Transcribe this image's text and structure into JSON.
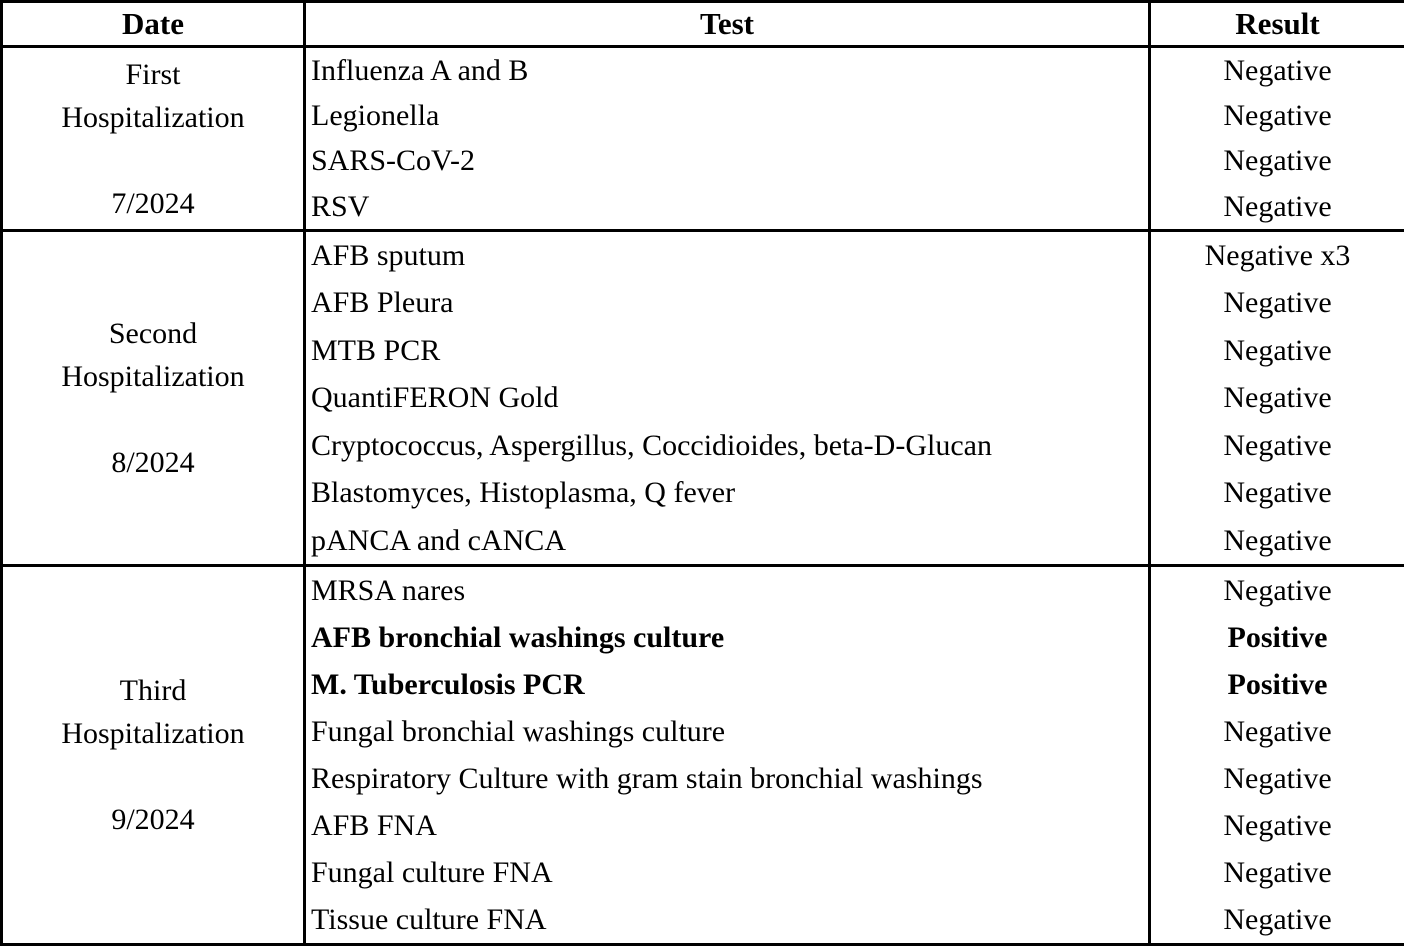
{
  "table": {
    "headers": {
      "date": "Date",
      "test": "Test",
      "result": "Result"
    },
    "sections": [
      {
        "date_lines": [
          "First",
          "Hospitalization",
          "",
          "7/2024"
        ],
        "rows": [
          {
            "test": "Influenza A and B",
            "result": "Negative"
          },
          {
            "test": "Legionella",
            "result": "Negative"
          },
          {
            "test": "SARS-CoV-2",
            "result": "Negative"
          },
          {
            "test": "RSV",
            "result": "Negative"
          }
        ]
      },
      {
        "date_lines": [
          "Second",
          "Hospitalization",
          "",
          "8/2024"
        ],
        "rows": [
          {
            "test": "AFB sputum",
            "result": "Negative x3"
          },
          {
            "test": "AFB Pleura",
            "result": "Negative"
          },
          {
            "test": "MTB PCR",
            "result": "Negative"
          },
          {
            "test": "QuantiFERON Gold",
            "result": "Negative"
          },
          {
            "test": "Cryptococcus, Aspergillus, Coccidioides, beta-D-Glucan",
            "result": "Negative"
          },
          {
            "test": "Blastomyces, Histoplasma, Q fever",
            "result": "Negative"
          },
          {
            "test": "pANCA and cANCA",
            "result": "Negative"
          }
        ]
      },
      {
        "date_lines": [
          "Third",
          "Hospitalization",
          "",
          "9/2024"
        ],
        "rows": [
          {
            "test": "MRSA nares",
            "result": "Negative"
          },
          {
            "test": "AFB bronchial washings culture",
            "result": "Positive"
          },
          {
            "test": "M. Tuberculosis PCR",
            "result": "Positive"
          },
          {
            "test": "Fungal bronchial washings culture",
            "result": "Negative"
          },
          {
            "test": "Respiratory Culture with gram stain bronchial washings",
            "result": "Negative"
          },
          {
            "test": "AFB FNA",
            "result": "Negative"
          },
          {
            "test": "Fungal culture FNA",
            "result": "Negative"
          },
          {
            "test": "Tissue culture FNA",
            "result": "Negative"
          }
        ]
      }
    ]
  }
}
